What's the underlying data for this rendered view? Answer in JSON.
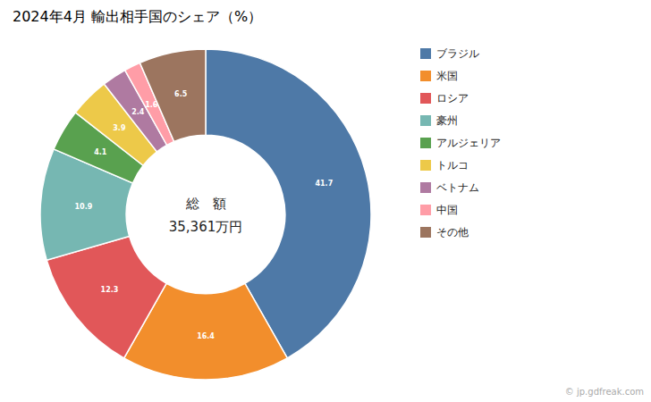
{
  "chart_data": {
    "type": "donut",
    "title": "2024年4月 輸出相手国のシェア（%）",
    "categories": [
      "ブラジル",
      "米国",
      "ロシア",
      "豪州",
      "アルジェリア",
      "トルコ",
      "ベトナム",
      "中国",
      "その他"
    ],
    "values": [
      41.7,
      16.4,
      12.3,
      10.9,
      4.1,
      3.9,
      2.4,
      1.6,
      6.5
    ],
    "data_labels": true,
    "legend": "right",
    "annotations": [
      "総　額",
      "35,361万円",
      "© jp.gdfreak.com"
    ]
  }
}
